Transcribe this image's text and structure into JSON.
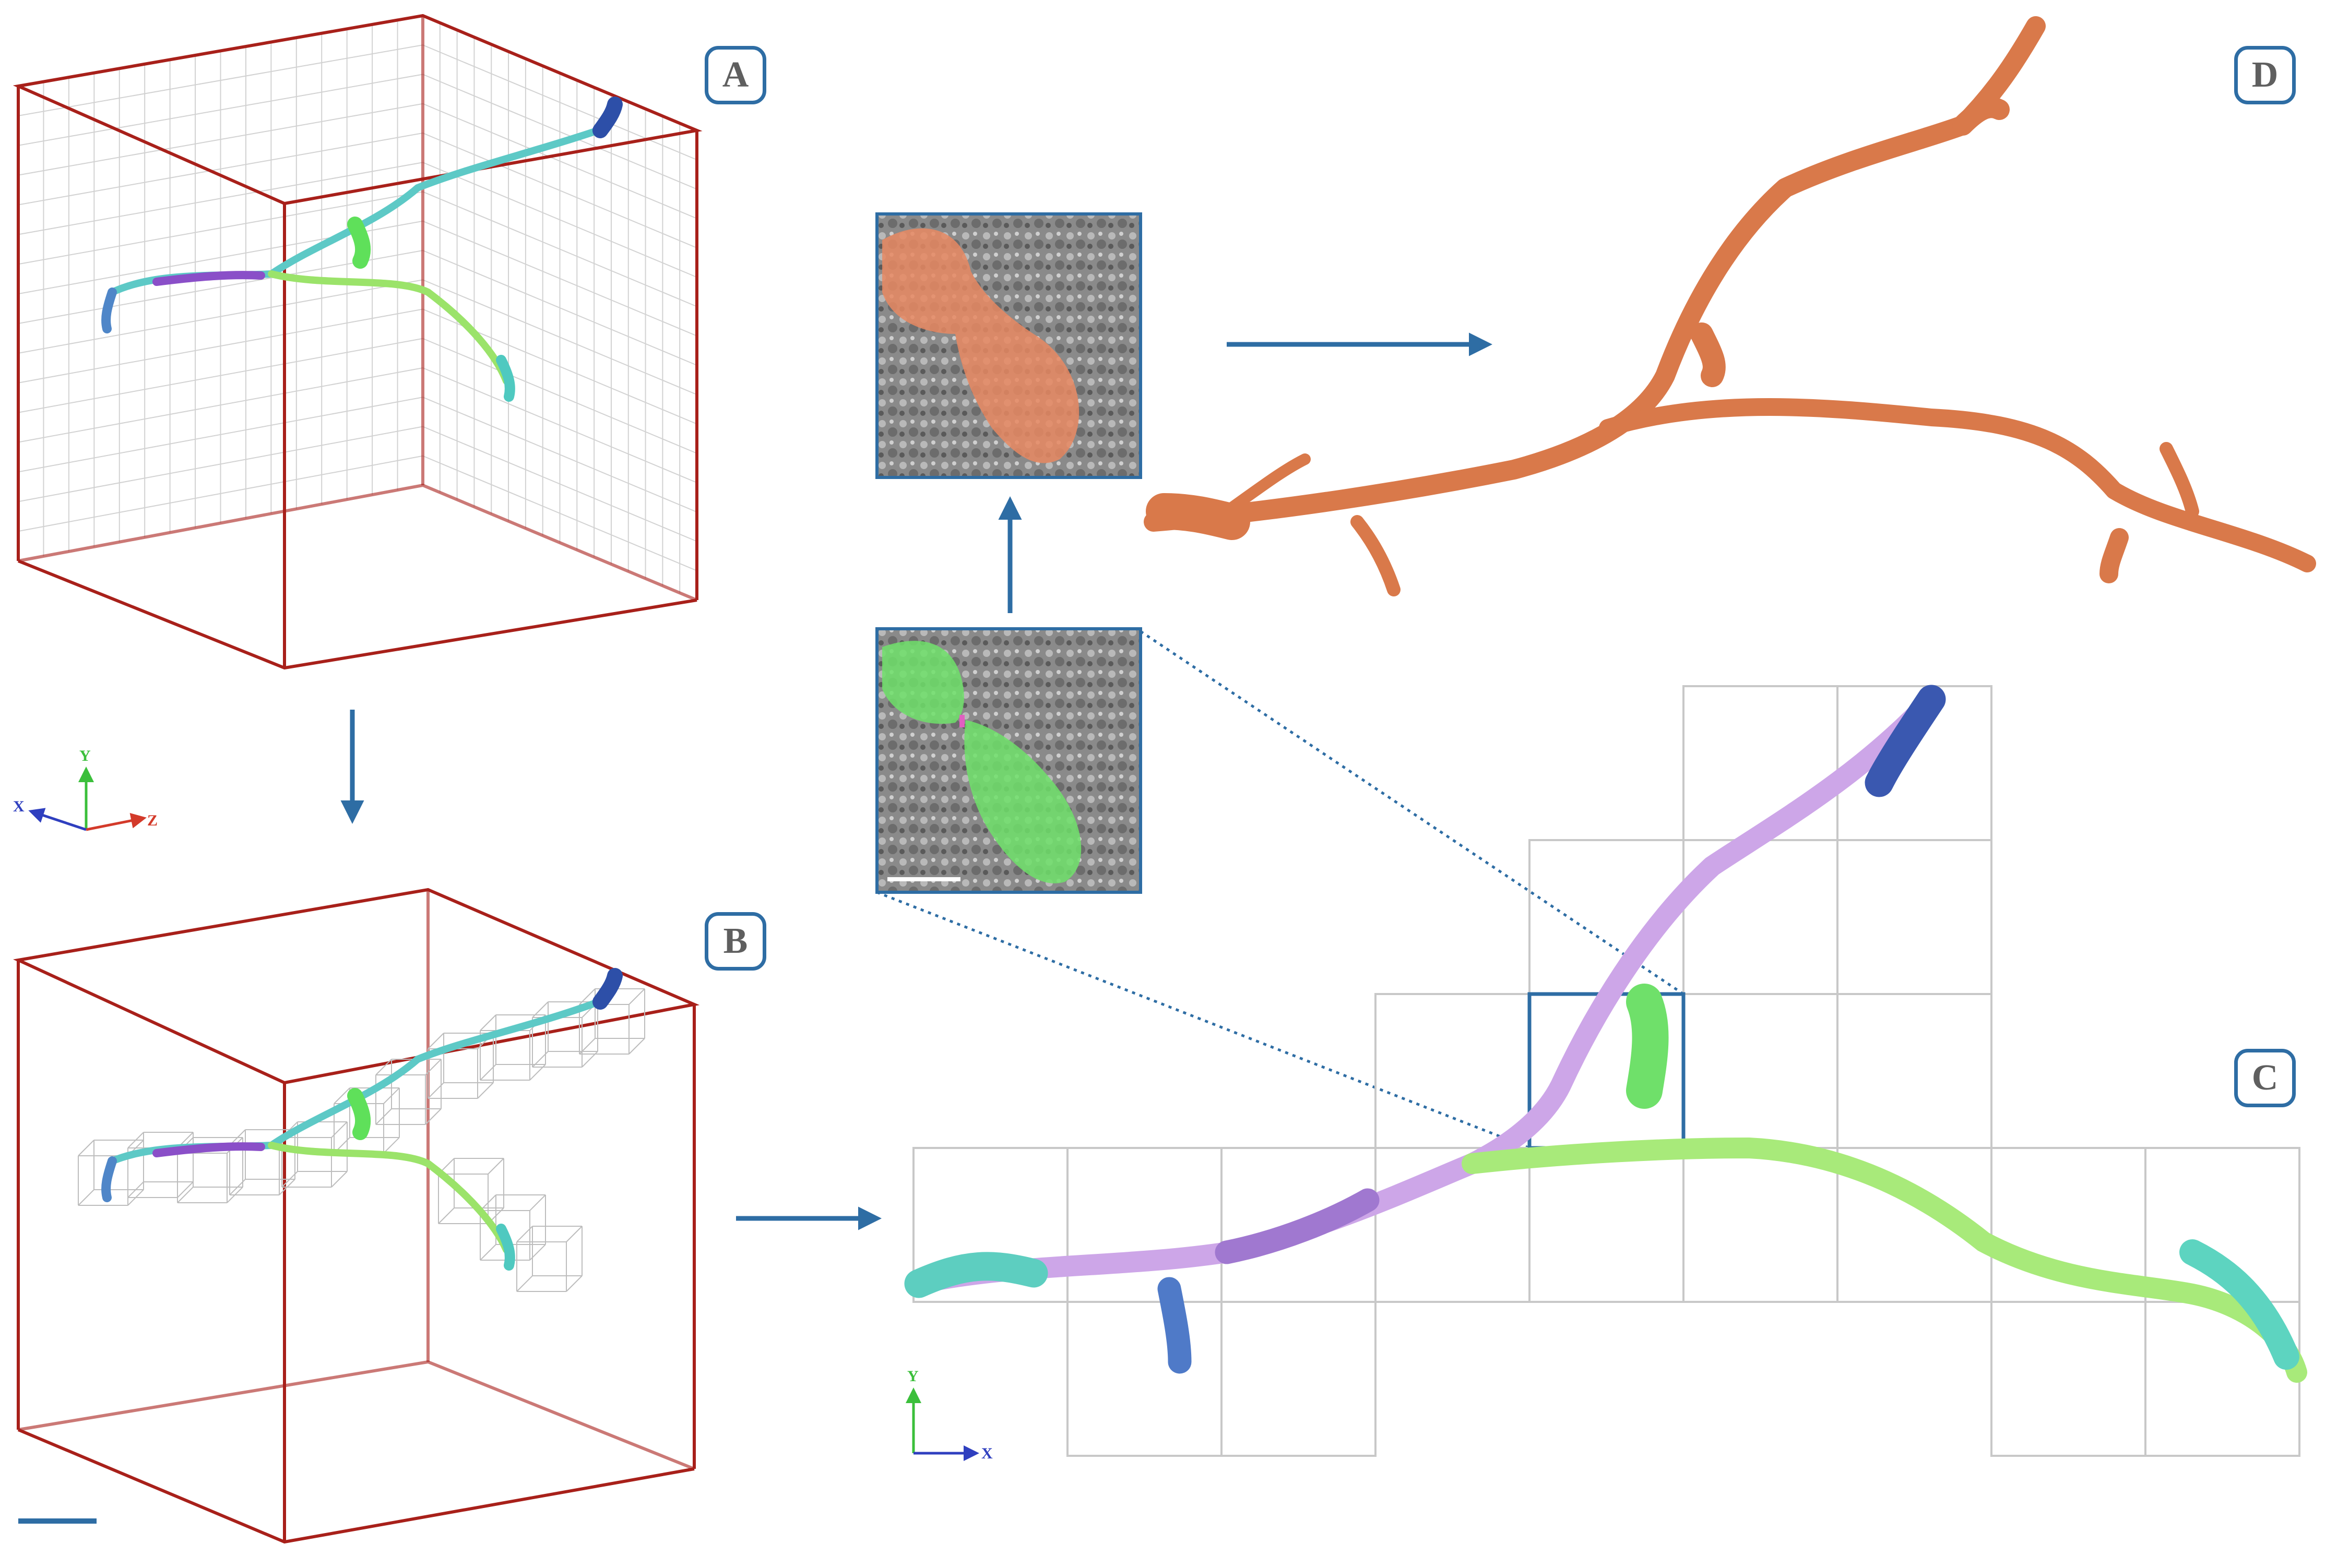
{
  "panels": {
    "a": {
      "label": "A"
    },
    "b": {
      "label": "B"
    },
    "c": {
      "label": "C"
    },
    "d": {
      "label": "D"
    }
  },
  "axes_3d": {
    "x": "X",
    "y": "Y",
    "z": "Z"
  },
  "axes_2d": {
    "x": "X",
    "y": "Y"
  },
  "colors": {
    "arrow": "#2e6da4",
    "cube_edge": "#a8201a",
    "grid": "#c8c8c8",
    "reconstruction": "#d9794a",
    "highlight_segment": "#6fe06a",
    "merged_segment": "#e88862",
    "axis_x": "#2f3fbf",
    "axis_y": "#3bbf3b",
    "axis_z": "#d33a2a"
  }
}
